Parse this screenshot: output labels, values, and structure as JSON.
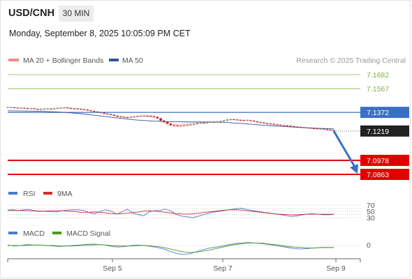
{
  "header": {
    "symbol": "USD/CNH",
    "interval": "30 MIN",
    "datetime": "Monday, September 8, 2025 10:05:09 PM CET"
  },
  "attribution": "Research © 2025 Trading Central",
  "colors": {
    "resistance": "#7cb342",
    "pivot": "#3a6fc4",
    "support": "#e00000",
    "current": "#222222",
    "candle_up": "#777777",
    "candle_down": "#b71c1c",
    "bollinger": "#f7b4b4",
    "ma50": "#2f5597",
    "rsi": "#4a7bd0",
    "rsi_ma": "#d32f2f",
    "macd": "#4a7bd0",
    "macd_signal": "#4c9a1c"
  },
  "chart_data": [
    {
      "type": "line",
      "panel": "price",
      "legend": [
        "MA 20 + Bollinger Bands",
        "MA 50"
      ],
      "legend_position": "top-left",
      "x_ticks": [
        "Sep 5",
        "Sep 7",
        "Sep 9"
      ],
      "ylim": [
        7.0863,
        7.1682
      ],
      "levels": [
        {
          "value": 7.1682,
          "label": "7.1682",
          "kind": "resistance"
        },
        {
          "value": 7.1567,
          "label": "7.1567",
          "kind": "resistance"
        },
        {
          "value": 7.1372,
          "label": "7.1372",
          "kind": "pivot"
        },
        {
          "value": 7.1219,
          "label": "7.1219",
          "kind": "current"
        },
        {
          "value": 7.0978,
          "label": "7.0978",
          "kind": "support"
        },
        {
          "value": 7.0863,
          "label": "7.0863",
          "kind": "support"
        }
      ],
      "price_series": [
        7.1413,
        7.1414,
        7.141,
        7.1408,
        7.1409,
        7.1406,
        7.1402,
        7.1405,
        7.14,
        7.1396,
        7.1398,
        7.1401,
        7.1403,
        7.1399,
        7.1404,
        7.1407,
        7.1409,
        7.1412,
        7.1408,
        7.1405,
        7.1403,
        7.1401,
        7.1398,
        7.1395,
        7.1389,
        7.1384,
        7.1378,
        7.1374,
        7.137,
        7.1362,
        7.1358,
        7.1352,
        7.1345,
        7.1338,
        7.1336,
        7.1332,
        7.133,
        7.1334,
        7.1338,
        7.134,
        7.1342,
        7.1344,
        7.1342,
        7.134,
        7.1335,
        7.1324,
        7.1305,
        7.1293,
        7.128,
        7.1268,
        7.1266,
        7.1262,
        7.1264,
        7.1268,
        7.127,
        7.1273,
        7.1278,
        7.1285,
        7.1288,
        7.1286,
        7.1291,
        7.1294,
        7.1292,
        7.1296,
        7.1299,
        7.1305,
        7.1312,
        7.1315,
        7.1313,
        7.131,
        7.1308,
        7.1306,
        7.1308,
        7.1304,
        7.1298,
        7.1292,
        7.1289,
        7.1283,
        7.128,
        7.1277,
        7.1273,
        7.127,
        7.1266,
        7.1264,
        7.1262,
        7.1258,
        7.1254,
        7.1252,
        7.125,
        7.1246,
        7.1246,
        7.1242,
        7.124,
        7.1238,
        7.1238,
        7.1233,
        7.1229,
        7.1226,
        7.1222
      ],
      "ma50_series": [
        7.1385,
        7.1383,
        7.138,
        7.1374,
        7.1362,
        7.1345,
        7.1327,
        7.1311,
        7.1301,
        7.1296,
        7.1294,
        7.1293,
        7.129,
        7.128,
        7.1268,
        7.1258,
        7.1249,
        7.1242,
        7.1236
      ],
      "forecast": {
        "from": 7.1219,
        "to": 7.088
      }
    },
    {
      "type": "line",
      "panel": "rsi",
      "legend": [
        "RSI",
        "9MA"
      ],
      "legend_position": "top-left",
      "y_ticks": [
        "70",
        "50",
        "30"
      ],
      "ylim": [
        0,
        100
      ],
      "rsi_series": [
        54,
        55,
        53,
        55,
        56,
        52,
        51,
        50,
        49,
        48,
        52,
        54,
        55,
        55,
        53,
        46,
        42,
        50,
        55,
        51,
        41,
        48,
        57,
        44,
        40,
        36,
        48,
        52,
        53,
        57,
        52,
        40,
        35,
        33,
        30,
        34,
        39,
        44,
        48,
        50,
        53,
        56,
        58,
        60,
        56,
        53,
        50,
        47,
        45,
        42,
        40,
        37,
        34,
        35,
        38,
        41,
        43,
        41,
        39,
        39,
        40
      ],
      "ma9_series": [
        53,
        53,
        53,
        52,
        52,
        51,
        50,
        51,
        52,
        52,
        52,
        51,
        50,
        48,
        46,
        47,
        48,
        47,
        45,
        43,
        42,
        43,
        44,
        46,
        48,
        51,
        52,
        51,
        49,
        47,
        45,
        43,
        42,
        41,
        42,
        44,
        46,
        48,
        50,
        52,
        54,
        55,
        55,
        54,
        52,
        50,
        48,
        46,
        44,
        42,
        41,
        40,
        39,
        39,
        40,
        41,
        41,
        41,
        41,
        41,
        41
      ]
    },
    {
      "type": "line",
      "panel": "macd",
      "legend": [
        "MACD",
        "MACD Signal"
      ],
      "legend_position": "top-left",
      "y_ticks": [
        "0"
      ],
      "ylim": [
        -0.0024,
        0.0008
      ],
      "macd_series": [
        0.0001,
        -0.0001,
        0.0,
        0.0002,
        0.0001,
        0.0001,
        0.0,
        -0.0001,
        -0.0002,
        -0.0001,
        0.0,
        0.0001,
        0.0002,
        0.0003,
        0.0002,
        0.0001,
        -0.0002,
        -0.0003,
        -0.0002,
        0.0,
        0.0001,
        0.0,
        -0.0002,
        -0.0004,
        -0.0007,
        -0.0012,
        -0.0016,
        -0.0018,
        -0.0016,
        -0.0012,
        -0.0008,
        -0.0005,
        -0.0003,
        -0.0001,
        0.0002,
        0.0004,
        0.0005,
        0.0006,
        0.0005,
        0.0004,
        0.0002,
        0.0,
        -0.0002,
        -0.0004,
        -0.0006,
        -0.0007,
        -0.0006,
        -0.0005,
        -0.0004,
        -0.0004,
        -0.0004
      ],
      "signal_series": [
        0.0,
        0.0,
        0.0,
        0.0,
        0.0001,
        0.0001,
        0.0,
        0.0,
        -0.0001,
        -0.0001,
        -0.0001,
        0.0,
        0.0001,
        0.0001,
        0.0002,
        0.0001,
        0.0,
        -0.0001,
        -0.0001,
        -0.0001,
        0.0,
        0.0,
        -0.0001,
        -0.0002,
        -0.0004,
        -0.0007,
        -0.001,
        -0.0013,
        -0.0014,
        -0.0013,
        -0.0011,
        -0.0009,
        -0.0006,
        -0.0003,
        0.0,
        0.0002,
        0.0004,
        0.0005,
        0.0005,
        0.0005,
        0.0003,
        0.0002,
        0.0,
        -0.0002,
        -0.0003,
        -0.0004,
        -0.0005,
        -0.0005,
        -0.0004,
        -0.0004,
        -0.0004
      ]
    }
  ]
}
